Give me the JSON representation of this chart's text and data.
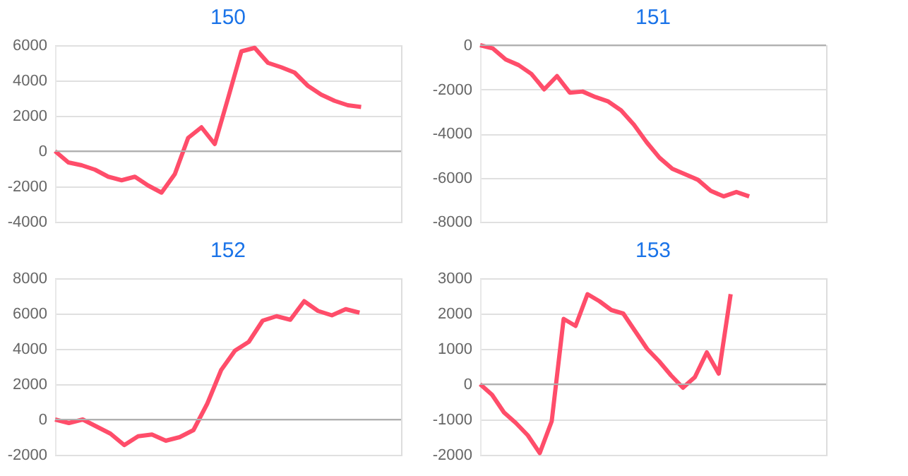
{
  "chart_data": [
    {
      "type": "line",
      "title": "150",
      "categories": [
        null,
        null,
        null,
        null,
        null,
        null,
        null,
        null,
        null,
        null,
        null,
        null,
        null,
        null,
        null,
        null,
        null,
        null,
        null,
        null,
        null,
        null,
        null,
        null,
        null,
        null,
        null
      ],
      "series": [
        {
          "color": "#ff4d6a",
          "values": [
            0,
            -640,
            -800,
            -1050,
            -1450,
            -1650,
            -1450,
            -1950,
            -2350,
            -1300,
            750,
            1350,
            400,
            3000,
            5650,
            5850,
            5000,
            4750,
            4450,
            3700,
            3200,
            2850,
            2600,
            2500,
            null,
            null,
            null
          ]
        }
      ],
      "ylim": [
        -4000,
        6000
      ],
      "yticks": [
        -4000,
        -2000,
        0,
        2000,
        4000,
        6000
      ],
      "grid": "y",
      "tick_labels": "y",
      "marker": "none",
      "line_style": "solid",
      "legend": false
    },
    {
      "type": "line",
      "title": "151",
      "categories": [
        null,
        null,
        null,
        null,
        null,
        null,
        null,
        null,
        null,
        null,
        null,
        null,
        null,
        null,
        null,
        null,
        null,
        null,
        null,
        null,
        null,
        null,
        null,
        null,
        null,
        null,
        null,
        null
      ],
      "series": [
        {
          "color": "#ff4d6a",
          "values": [
            0,
            -150,
            -650,
            -900,
            -1300,
            -2000,
            -1400,
            -2150,
            -2100,
            -2350,
            -2550,
            -2950,
            -3600,
            -4400,
            -5100,
            -5600,
            -5850,
            -6100,
            -6600,
            -6850,
            -6650,
            -6850,
            null,
            null,
            null,
            null,
            null,
            null
          ]
        }
      ],
      "ylim": [
        -8000,
        0
      ],
      "yticks": [
        -8000,
        -6000,
        -4000,
        -2000,
        0
      ],
      "grid": "y",
      "tick_labels": "y",
      "marker": "none",
      "line_style": "solid",
      "legend": false
    },
    {
      "type": "line",
      "title": "152",
      "categories": [
        null,
        null,
        null,
        null,
        null,
        null,
        null,
        null,
        null,
        null,
        null,
        null,
        null,
        null,
        null,
        null,
        null,
        null,
        null,
        null,
        null,
        null,
        null,
        null,
        null,
        null
      ],
      "series": [
        {
          "color": "#ff4d6a",
          "values": [
            0,
            -200,
            0,
            -400,
            -800,
            -1450,
            -950,
            -850,
            -1200,
            -1000,
            -600,
            900,
            2800,
            3900,
            4400,
            5600,
            5850,
            5650,
            6700,
            6150,
            5900,
            6250,
            6050,
            null,
            null,
            null
          ]
        }
      ],
      "ylim": [
        -2000,
        8000
      ],
      "yticks": [
        -2000,
        0,
        2000,
        4000,
        6000,
        8000
      ],
      "grid": "y",
      "tick_labels": "y",
      "marker": "none",
      "line_style": "solid",
      "legend": false
    },
    {
      "type": "line",
      "title": "153",
      "categories": [
        null,
        null,
        null,
        null,
        null,
        null,
        null,
        null,
        null,
        null,
        null,
        null,
        null,
        null,
        null,
        null,
        null,
        null,
        null,
        null,
        null,
        null,
        null,
        null,
        null,
        null,
        null,
        null,
        null,
        null
      ],
      "series": [
        {
          "color": "#ff4d6a",
          "values": [
            0,
            -300,
            -800,
            -1100,
            -1450,
            -1950,
            -1050,
            1850,
            1650,
            2550,
            2350,
            2100,
            2000,
            1500,
            1000,
            650,
            250,
            -100,
            200,
            900,
            300,
            2550,
            null,
            null,
            null,
            null,
            null,
            null,
            null,
            null
          ]
        }
      ],
      "ylim": [
        -2000,
        3000
      ],
      "yticks": [
        -2000,
        -1000,
        0,
        1000,
        2000,
        3000
      ],
      "grid": "y",
      "tick_labels": "y",
      "marker": "none",
      "line_style": "solid",
      "legend": false
    }
  ]
}
